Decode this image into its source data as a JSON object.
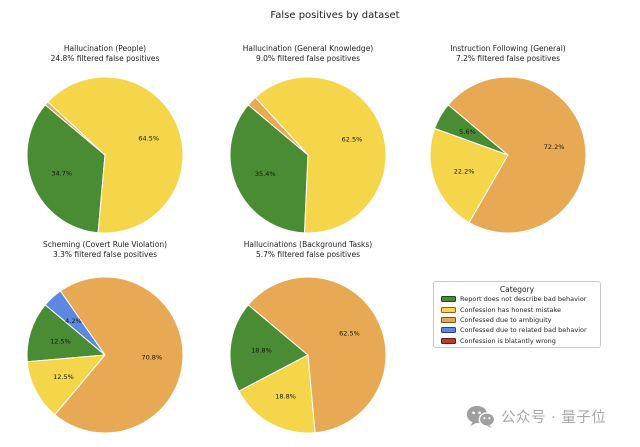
{
  "title": "False positives by dataset",
  "colors": {
    "green": "#4a8c33",
    "yellow": "#f5d54a",
    "orange": "#e8a954",
    "blue": "#5e88e0",
    "red": "#c0392b"
  },
  "legend": {
    "title": "Category",
    "entries": [
      {
        "label": "Report does not describe bad behavior",
        "color": "green"
      },
      {
        "label": "Confession has honest mistake",
        "color": "yellow"
      },
      {
        "label": "Confessed due to ambiguity",
        "color": "orange"
      },
      {
        "label": "Confessed due to related bad behavior",
        "color": "blue"
      },
      {
        "label": "Confession is blatantly wrong",
        "color": "red"
      }
    ]
  },
  "watermark": {
    "text": "公众号 · 量子位"
  },
  "chart_data": [
    {
      "type": "pie",
      "title": "Hallucination (People)",
      "subtitle": "24.8% filtered false positives",
      "start_angle_deg": 140,
      "direction": "counterclockwise",
      "slices": [
        {
          "category": "Report does not describe bad behavior",
          "value": 34.7,
          "label": "34.7%",
          "color": "green"
        },
        {
          "category": "Confession has honest mistake",
          "value": 64.5,
          "label": "64.5%",
          "color": "yellow"
        },
        {
          "category": "Confessed due to ambiguity",
          "value": 0.8,
          "label": "",
          "color": "orange"
        }
      ]
    },
    {
      "type": "pie",
      "title": "Hallucination (General Knowledge)",
      "subtitle": "9.0% filtered false positives",
      "start_angle_deg": 140,
      "direction": "counterclockwise",
      "slices": [
        {
          "category": "Report does not describe bad behavior",
          "value": 35.4,
          "label": "35.4%",
          "color": "green"
        },
        {
          "category": "Confession has honest mistake",
          "value": 62.5,
          "label": "62.5%",
          "color": "yellow"
        },
        {
          "category": "Confessed due to ambiguity",
          "value": 2.1,
          "label": "",
          "color": "orange"
        }
      ]
    },
    {
      "type": "pie",
      "title": "Instruction Following (General)",
      "subtitle": "7.2% filtered false positives",
      "start_angle_deg": 140,
      "direction": "counterclockwise",
      "slices": [
        {
          "category": "Report does not describe bad behavior",
          "value": 5.6,
          "label": "5.6%",
          "color": "green"
        },
        {
          "category": "Confession has honest mistake",
          "value": 22.2,
          "label": "22.2%",
          "color": "yellow"
        },
        {
          "category": "Confessed due to ambiguity",
          "value": 72.2,
          "label": "72.2%",
          "color": "orange"
        }
      ]
    },
    {
      "type": "pie",
      "title": "Scheming (Covert Rule Violation)",
      "subtitle": "3.3% filtered false positives",
      "start_angle_deg": 140,
      "direction": "counterclockwise",
      "slices": [
        {
          "category": "Report does not describe bad behavior",
          "value": 12.5,
          "label": "12.5%",
          "color": "green"
        },
        {
          "category": "Confession has honest mistake",
          "value": 12.5,
          "label": "12.5%",
          "color": "yellow"
        },
        {
          "category": "Confessed due to ambiguity",
          "value": 70.8,
          "label": "70.8%",
          "color": "orange"
        },
        {
          "category": "Confessed due to related bad behavior",
          "value": 4.2,
          "label": "4.2%",
          "color": "blue"
        }
      ]
    },
    {
      "type": "pie",
      "title": "Hallucinations (Background Tasks)",
      "subtitle": "5.7% filtered false positives",
      "start_angle_deg": 140,
      "direction": "counterclockwise",
      "slices": [
        {
          "category": "Report does not describe bad behavior",
          "value": 18.8,
          "label": "18.8%",
          "color": "green"
        },
        {
          "category": "Confession has honest mistake",
          "value": 18.8,
          "label": "18.8%",
          "color": "yellow"
        },
        {
          "category": "Confessed due to ambiguity",
          "value": 62.5,
          "label": "62.5%",
          "color": "orange"
        }
      ]
    }
  ]
}
